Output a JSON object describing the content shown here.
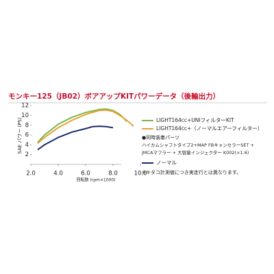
{
  "chart_data": {
    "type": "line",
    "title": "モンキー125（JB02）ボアアップKITパワーデータ（後輪出力）",
    "y_label": "SAE パワー (PS)",
    "x_label": "回転数 (rpm×1000)",
    "xlim": [
      2,
      10.6
    ],
    "ylim": [
      0,
      13
    ],
    "xticks": [
      {
        "value": 2,
        "label": "2.0"
      },
      {
        "value": 4,
        "label": "4.0"
      },
      {
        "value": 6,
        "label": "6.0"
      },
      {
        "value": 8,
        "label": "8.0"
      },
      {
        "value": 10,
        "label": "10.0"
      }
    ],
    "yticks": [
      2,
      4,
      6,
      8,
      10,
      12
    ],
    "series": [
      {
        "name": "LIGHT164cc+UNIフィルターKIT",
        "color": "#7ab648",
        "x": [
          2.5,
          3,
          4,
          5,
          6,
          7,
          7.5,
          8,
          8.5,
          9
        ],
        "values": [
          4.5,
          6,
          8.2,
          9.6,
          10.6,
          11.2,
          11.3,
          11,
          10.2,
          8.8
        ]
      },
      {
        "name": "LIGHT164cc+（ノーマルエアーフィルター）",
        "color": "#e8a030",
        "x": [
          2.5,
          3,
          4,
          5,
          6,
          7,
          7.5,
          8,
          8.5,
          9,
          9.5
        ],
        "values": [
          4.3,
          5.5,
          7.5,
          9,
          10.2,
          11,
          11.1,
          10.8,
          10,
          9,
          7.8
        ]
      },
      {
        "name": "ノーマル",
        "color": "#1a2a6c",
        "x": [
          2.5,
          3,
          4,
          5,
          6,
          6.5,
          7,
          7.5,
          8
        ],
        "values": [
          3,
          4,
          5.5,
          6.6,
          7.3,
          7.7,
          7.8,
          7.7,
          7.5
        ]
      }
    ],
    "notes": [
      "●同時装着パーツ",
      "ハイカムシャフトタイプ2+MAP FBキャンセラーSET +",
      "JMCAマフラー + 大容量インジェクター K002(×1.6)",
      "※キタコ計測値につき実走行とは異なります。"
    ]
  }
}
